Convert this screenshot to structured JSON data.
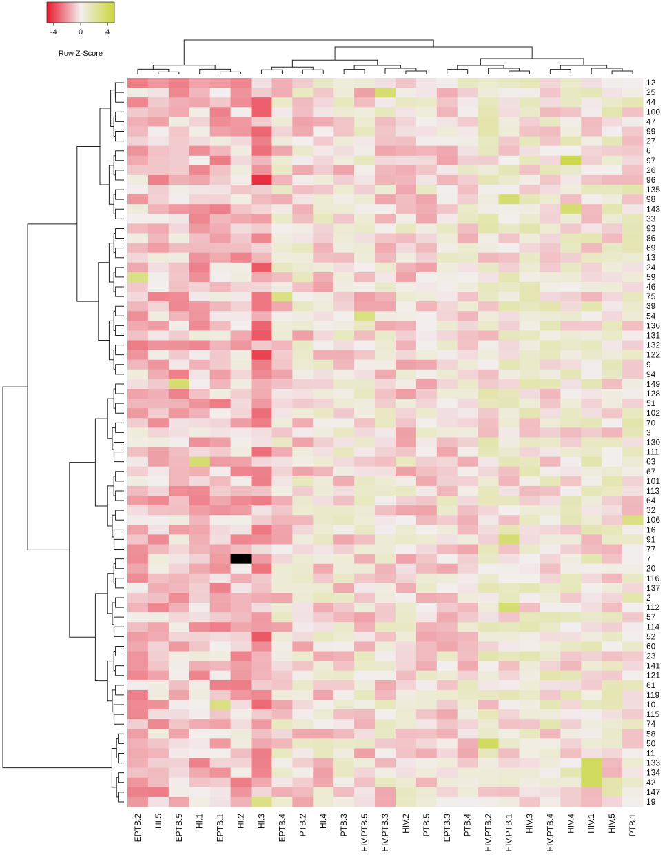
{
  "chart_data": {
    "type": "heatmap",
    "title": "",
    "color_key": {
      "title": "Row Z-Score",
      "ticks": [
        -4,
        0,
        4
      ],
      "tick_labels": [
        "-4",
        "0",
        "4"
      ],
      "range": [
        -5,
        5
      ],
      "low_color": "#e8192c",
      "mid_color": "#f3eeee",
      "high_color": "#c9d63c"
    },
    "columns": [
      "EPTB.2",
      "HI.5",
      "EPTB.5",
      "HI.1",
      "EPTB.1",
      "HI.2",
      "HI.3",
      "EPTB.4",
      "PTB.2",
      "HI.4",
      "PTB.3",
      "HIV.PTB.5",
      "HIV.PTB.3",
      "HIV.2",
      "PTB.5",
      "EPTB.3",
      "PTB.4",
      "HIV.PTB.2",
      "HIV.PTB.1",
      "HIV.3",
      "HIV.PTB.4",
      "HIV.4",
      "HIV.1",
      "HIV.5",
      "PTB.1"
    ],
    "row_labels": [
      "12",
      "25",
      "44",
      "100",
      "47",
      "99",
      "27",
      "6",
      "97",
      "26",
      "96",
      "135",
      "98",
      "143",
      "33",
      "93",
      "86",
      "69",
      "13",
      "24",
      "59",
      "46",
      "75",
      "39",
      "54",
      "136",
      "131",
      "132",
      "122",
      "9",
      "94",
      "149",
      "128",
      "51",
      "102",
      "70",
      "3",
      "130",
      "111",
      "63",
      "67",
      "101",
      "113",
      "64",
      "32",
      "106",
      "16",
      "91",
      "77",
      "7",
      "20",
      "116",
      "137",
      "2",
      "112",
      "57",
      "114",
      "52",
      "60",
      "23",
      "141",
      "121",
      "61",
      "119",
      "10",
      "115",
      "74",
      "58",
      "50",
      "11",
      "133",
      "134",
      "42",
      "147",
      "19"
    ],
    "missing_color": "#000000",
    "notes": {
      "dendrograms": "rows and columns hierarchically clustered"
    },
    "column_groups": [
      [
        "EPTB.2",
        "HI.5",
        "EPTB.5",
        "HI.1",
        "EPTB.1",
        "HI.2"
      ],
      [
        "HI.3",
        "EPTB.4",
        "PTB.2",
        "HI.4",
        "PTB.3",
        "HIV.PTB.5",
        "HIV.PTB.3",
        "HIV.2",
        "PTB.5",
        "EPTB.3",
        "PTB.4",
        "HIV.PTB.2",
        "HIV.PTB.1",
        "HIV.3",
        "HIV.PTB.4",
        "HIV.4",
        "HIV.1",
        "HIV.5",
        "PTB.1"
      ]
    ],
    "highlights": [
      {
        "row": "98",
        "col": "HIV.PTB.1",
        "value": 3.5
      },
      {
        "row": "143",
        "col": "HIV.4",
        "value": 3.5
      },
      {
        "row": "97",
        "col": "HIV.4",
        "value": 4.5
      },
      {
        "row": "25",
        "col": "HIV.PTB.3",
        "value": 3.5
      },
      {
        "row": "96",
        "col": "HI.3",
        "value": -4.5
      },
      {
        "row": "122",
        "col": "HI.3",
        "value": -4
      },
      {
        "row": "131",
        "col": "HI.3",
        "value": -3.5
      },
      {
        "row": "59",
        "col": "EPTB.2",
        "value": 3
      },
      {
        "row": "75",
        "col": "EPTB.4",
        "value": 3
      },
      {
        "row": "54",
        "col": "HIV.PTB.5",
        "value": 3
      },
      {
        "row": "149",
        "col": "EPTB.5",
        "value": 3.5
      },
      {
        "row": "63",
        "col": "HI.1",
        "value": 3.5
      },
      {
        "row": "106",
        "col": "PTB.1",
        "value": 3
      },
      {
        "row": "91",
        "col": "HIV.PTB.1",
        "value": 3.5
      },
      {
        "row": "112",
        "col": "HIV.PTB.1",
        "value": 3.5
      },
      {
        "row": "50",
        "col": "HIV.PTB.2",
        "value": 4
      },
      {
        "row": "133",
        "col": "HIV.1",
        "value": 4
      },
      {
        "row": "134",
        "col": "HIV.1",
        "value": 4
      },
      {
        "row": "42",
        "col": "HIV.1",
        "value": 4
      },
      {
        "row": "19",
        "col": "HI.3",
        "value": 3
      },
      {
        "row": "24",
        "col": "HI.3",
        "value": -3.5
      },
      {
        "row": "52",
        "col": "HI.3",
        "value": -3.5
      },
      {
        "row": "10",
        "col": "EPTB.1",
        "value": 3
      },
      {
        "row": "7",
        "col": "HI.2",
        "value": null
      }
    ]
  }
}
